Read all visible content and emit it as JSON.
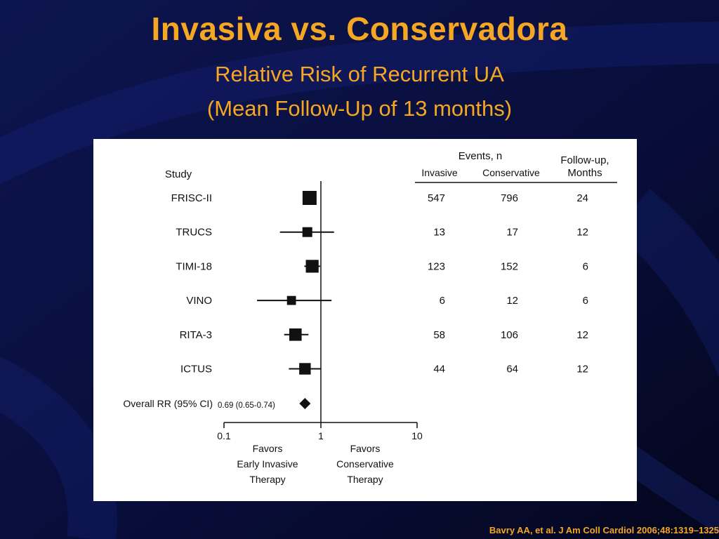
{
  "slide": {
    "title": "Invasiva vs. Conservadora",
    "subtitle_line1": "Relative Risk of Recurrent UA",
    "subtitle_line2": "(Mean Follow-Up of 13 months)",
    "citation": "Bavry AA, et al. J Am Coll Cardiol 2006;48:1319–1325"
  },
  "colors": {
    "background": "#0a0f3a",
    "title": "#f5a623",
    "panel": "#ffffff",
    "ink": "#111111"
  },
  "chart_data": {
    "type": "scatter",
    "variant": "forest-plot",
    "scale": "log",
    "xlim": [
      0.1,
      10
    ],
    "xticks": [
      "0.1",
      "1",
      "10"
    ],
    "reference_line": 1,
    "headers": {
      "study": "Study",
      "events": "Events, n",
      "invasive": "Invasive",
      "conservative": "Conservative",
      "followup_line1": "Follow-up,",
      "followup_line2": "Months"
    },
    "studies": [
      {
        "name": "FRISC-II",
        "rr": 0.77,
        "ci_low": 0.68,
        "ci_high": 0.87,
        "weight": 1.0,
        "invasive": "547",
        "conservative": "796",
        "followup": "24"
      },
      {
        "name": "TRUCS",
        "rr": 0.73,
        "ci_low": 0.38,
        "ci_high": 1.38,
        "weight": 0.5,
        "invasive": "13",
        "conservative": "17",
        "followup": "12"
      },
      {
        "name": "TIMI-18",
        "rr": 0.82,
        "ci_low": 0.68,
        "ci_high": 0.99,
        "weight": 0.85,
        "invasive": "123",
        "conservative": "152",
        "followup": "6"
      },
      {
        "name": "VINO",
        "rr": 0.5,
        "ci_low": 0.22,
        "ci_high": 1.3,
        "weight": 0.4,
        "invasive": "6",
        "conservative": "12",
        "followup": "6"
      },
      {
        "name": "RITA-3",
        "rr": 0.55,
        "ci_low": 0.42,
        "ci_high": 0.75,
        "weight": 0.8,
        "invasive": "58",
        "conservative": "106",
        "followup": "12"
      },
      {
        "name": "ICTUS",
        "rr": 0.69,
        "ci_low": 0.47,
        "ci_high": 1.0,
        "weight": 0.7,
        "invasive": "44",
        "conservative": "64",
        "followup": "12"
      }
    ],
    "overall": {
      "label": "Overall RR (95% CI)",
      "value_text": "0.69 (0.65-0.74)",
      "rr": 0.69,
      "ci_low": 0.65,
      "ci_high": 0.74
    },
    "favors_left": [
      "Favors",
      "Early Invasive",
      "Therapy"
    ],
    "favors_right": [
      "Favors",
      "Conservative",
      "Therapy"
    ]
  }
}
